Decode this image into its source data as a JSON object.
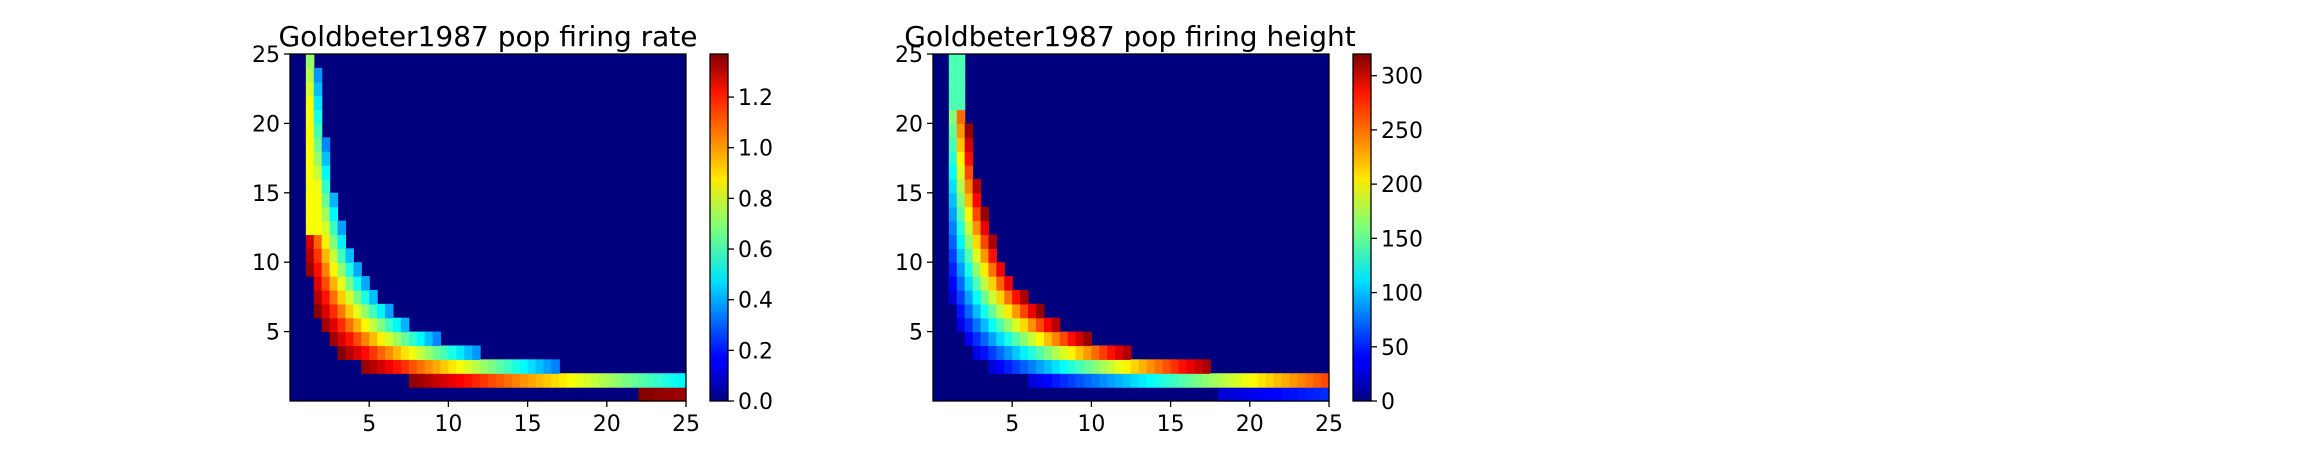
{
  "chart_data": [
    {
      "type": "heatmap",
      "title": "Goldbeter1987 pop firing rate",
      "xlabel": "",
      "ylabel": "",
      "xlim": [
        0,
        25
      ],
      "ylim": [
        0,
        25
      ],
      "x_ticks": [
        5,
        10,
        15,
        20,
        25
      ],
      "y_ticks": [
        5,
        10,
        15,
        20,
        25
      ],
      "colormap": "jet",
      "colorbar": {
        "min": 0.0,
        "max": 1.37,
        "ticks": [
          0.0,
          0.2,
          0.4,
          0.6,
          0.8,
          1.0,
          1.2
        ],
        "tick_labels": [
          "0.0",
          "0.2",
          "0.4",
          "0.6",
          "0.8",
          "1.0",
          "1.2"
        ]
      },
      "background_value": 0.0,
      "grid": false,
      "description_of_pattern": "nonzero values form a hyperbolic band: value increases toward the inner (low-x, low-y) edge of the band; band bounded by x*y ~ 12 to 38",
      "band_samples": [
        {
          "x": 1.5,
          "y": 25,
          "value": 0.6
        },
        {
          "x": 2,
          "y": 15,
          "value": 0.75
        },
        {
          "x": 3,
          "y": 10,
          "value": 0.7
        },
        {
          "x": 4,
          "y": 5,
          "value": 1.1
        },
        {
          "x": 6,
          "y": 3,
          "value": 1.2
        },
        {
          "x": 10,
          "y": 2,
          "value": 1.3
        },
        {
          "x": 20,
          "y": 1,
          "value": 1.35
        },
        {
          "x": 20,
          "y": 2,
          "value": 0.45
        }
      ]
    },
    {
      "type": "heatmap",
      "title": "Goldbeter1987 pop firing height",
      "xlabel": "",
      "ylabel": "",
      "xlim": [
        0,
        25
      ],
      "ylim": [
        0,
        25
      ],
      "x_ticks": [
        5,
        10,
        15,
        20,
        25
      ],
      "y_ticks": [
        5,
        10,
        15,
        20,
        25
      ],
      "colormap": "jet",
      "colorbar": {
        "min": 0,
        "max": 320,
        "ticks": [
          0,
          50,
          100,
          150,
          200,
          250,
          300
        ],
        "tick_labels": [
          "0",
          "50",
          "100",
          "150",
          "200",
          "250",
          "300"
        ]
      },
      "background_value": 0,
      "grid": false,
      "description_of_pattern": "nonzero values form a hyperbolic band: value increases toward the outer (high-x, high-y) edge of the band",
      "band_samples": [
        {
          "x": 1.5,
          "y": 25,
          "value": 150
        },
        {
          "x": 2,
          "y": 20,
          "value": 300
        },
        {
          "x": 3,
          "y": 15,
          "value": 310
        },
        {
          "x": 5,
          "y": 5,
          "value": 200
        },
        {
          "x": 10,
          "y": 3,
          "value": 310
        },
        {
          "x": 15,
          "y": 1.5,
          "value": 200
        },
        {
          "x": 22,
          "y": 1,
          "value": 80
        }
      ]
    }
  ]
}
